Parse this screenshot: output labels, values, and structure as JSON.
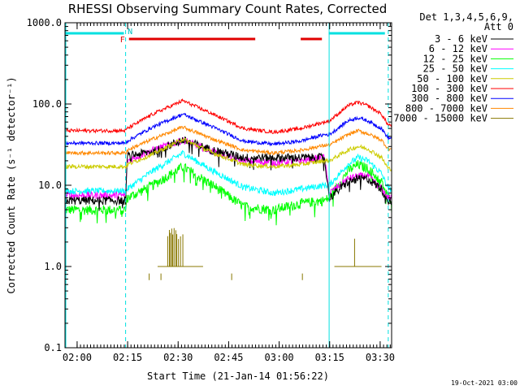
{
  "chart_data": {
    "type": "line",
    "title": "RHESSI Observing Summary Count Rates, Corrected",
    "xlabel": "Start Time (21-Jan-14 01:56:22)",
    "ylabel": "Corrected Count Rate (s⁻¹ detector⁻¹)",
    "yscale": "log",
    "ylim": [
      0.1,
      1000
    ],
    "xlim_minutes": [
      0,
      97
    ],
    "x_ticks": [
      {
        "label": "02:00",
        "t": 3.6
      },
      {
        "label": "02:15",
        "t": 18.6
      },
      {
        "label": "02:30",
        "t": 33.6
      },
      {
        "label": "02:45",
        "t": 48.6
      },
      {
        "label": "03:00",
        "t": 63.6
      },
      {
        "label": "03:15",
        "t": 78.6
      },
      {
        "label": "03:30",
        "t": 93.6
      }
    ],
    "y_ticks": [
      {
        "label": "0.1",
        "v": 0.1
      },
      {
        "label": "1.0",
        "v": 1.0
      },
      {
        "label": "10.0",
        "v": 10
      },
      {
        "label": "100.0",
        "v": 100
      },
      {
        "label": "1000.0",
        "v": 1000
      }
    ],
    "legend_header": [
      "Det 1,3,4,5,6,9,",
      "Att 0"
    ],
    "x_sample_minutes": [
      0,
      18,
      18.5,
      26,
      35,
      44,
      53,
      62,
      70,
      77,
      78.5,
      84,
      87,
      90,
      94,
      96
    ],
    "series": [
      {
        "name": "3 - 6 keV",
        "color": "#000000",
        "noise": 0.12,
        "values": [
          6.5,
          6.5,
          23,
          26,
          36,
          27,
          22,
          22,
          22,
          22,
          7,
          11,
          12,
          12,
          9,
          6.5
        ]
      },
      {
        "name": "6 - 12 keV",
        "color": "#ff00ff",
        "noise": 0.1,
        "values": [
          7.5,
          7.5,
          20,
          27,
          36,
          26,
          20,
          19,
          20,
          22,
          8,
          12,
          13,
          13,
          9,
          7
        ]
      },
      {
        "name": "12 - 25 keV",
        "color": "#00ff00",
        "noise": 0.14,
        "values": [
          5,
          5,
          7,
          10,
          17,
          10,
          5.5,
          5,
          6,
          6.5,
          7,
          15,
          18,
          16,
          11,
          7
        ]
      },
      {
        "name": "25 - 50 keV",
        "color": "#00ffff",
        "noise": 0.09,
        "values": [
          8.5,
          8.5,
          9,
          15,
          25,
          15,
          9.5,
          8,
          9,
          10,
          10,
          18,
          22,
          20,
          14,
          9
        ]
      },
      {
        "name": "50 - 100 keV",
        "color": "#cccc00",
        "noise": 0.06,
        "values": [
          17,
          17,
          18,
          24,
          37,
          25,
          18,
          17,
          18,
          20,
          20,
          27,
          30,
          28,
          22,
          16
        ]
      },
      {
        "name": "100 - 300 keV",
        "color": "#ff0000",
        "noise": 0.05,
        "values": [
          47,
          47,
          50,
          75,
          110,
          75,
          50,
          45,
          50,
          60,
          62,
          95,
          105,
          95,
          75,
          55
        ]
      },
      {
        "name": "300 - 800 keV",
        "color": "#0000ff",
        "noise": 0.05,
        "values": [
          33,
          33,
          35,
          52,
          75,
          52,
          35,
          32,
          35,
          42,
          42,
          62,
          68,
          62,
          50,
          38
        ]
      },
      {
        "name": "800 - 7000 keV",
        "color": "#ff8800",
        "noise": 0.05,
        "values": [
          25,
          25,
          27,
          37,
          52,
          37,
          27,
          25,
          27,
          31,
          31,
          42,
          47,
          43,
          36,
          28
        ]
      },
      {
        "name": "7000 - 15000 keV",
        "color": "#887700",
        "noise": 0,
        "values": []
      }
    ],
    "annotations": {
      "flag_labels": [
        "F",
        "N"
      ],
      "cyan_segments_minutes": [
        [
          0,
          17.5
        ],
        [
          78.3,
          95
        ]
      ],
      "red_segments_minutes": [
        [
          19,
          56.5
        ],
        [
          70,
          76.3
        ]
      ],
      "vertical_solid_minutes": [
        0,
        78.2
      ],
      "vertical_dashed_minutes": [
        18,
        96
      ]
    }
  },
  "footer_date": "19-Oct-2021 03:00"
}
